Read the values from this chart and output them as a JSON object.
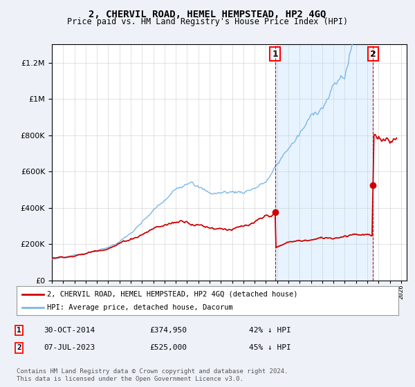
{
  "title": "2, CHERVIL ROAD, HEMEL HEMPSTEAD, HP2 4GQ",
  "subtitle": "Price paid vs. HM Land Registry's House Price Index (HPI)",
  "ylim": [
    0,
    1300000
  ],
  "xlim_start": 1995,
  "xlim_end": 2026.5,
  "hpi_color": "#7ab8e8",
  "price_color": "#cc0000",
  "transaction1_x": 2014.83,
  "transaction2_x": 2023.51,
  "transaction1_price": 374950,
  "transaction2_price": 525000,
  "transaction1_date": "30-OCT-2014",
  "transaction2_date": "07-JUL-2023",
  "transaction1_label": "42% ↓ HPI",
  "transaction2_label": "45% ↓ HPI",
  "legend_label1": "2, CHERVIL ROAD, HEMEL HEMPSTEAD, HP2 4GQ (detached house)",
  "legend_label2": "HPI: Average price, detached house, Dacorum",
  "footer": "Contains HM Land Registry data © Crown copyright and database right 2024.\nThis data is licensed under the Open Government Licence v3.0.",
  "background_color": "#eef2f8",
  "plot_bg_color": "#ffffff",
  "shade_color": "#ddeeff",
  "grid_color": "#cccccc"
}
